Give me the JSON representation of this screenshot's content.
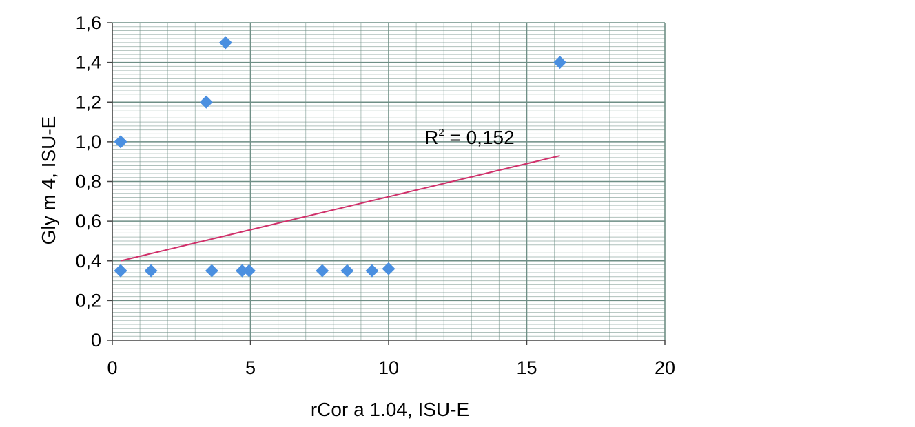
{
  "chart_data": {
    "type": "scatter",
    "title": "",
    "xlabel": "rCor a 1.04, ISU-E",
    "ylabel": "Gly m 4, ISU-E",
    "xlim": [
      0,
      20
    ],
    "ylim": [
      0,
      1.6
    ],
    "x_ticks": [
      0,
      5,
      10,
      15,
      20
    ],
    "y_ticks": [
      0,
      0.2,
      0.4,
      0.6,
      0.8,
      1.0,
      1.2,
      1.4,
      1.6
    ],
    "x_tick_labels": [
      "0",
      "5",
      "10",
      "15",
      "20"
    ],
    "y_tick_labels": [
      "0",
      "0,2",
      "0,4",
      "0,6",
      "0,8",
      "1,0",
      "1,2",
      "1,4",
      "1,6"
    ],
    "grid": true,
    "marker_color": "#4a8fe0",
    "trendline_color": "#d0306a",
    "grid_color": "#6f8f86",
    "points": [
      {
        "x": 0.3,
        "y": 1.0
      },
      {
        "x": 0.3,
        "y": 0.35
      },
      {
        "x": 0.3,
        "y": 0.35
      },
      {
        "x": 1.4,
        "y": 0.35
      },
      {
        "x": 3.4,
        "y": 1.2
      },
      {
        "x": 3.6,
        "y": 0.35
      },
      {
        "x": 4.1,
        "y": 1.5
      },
      {
        "x": 4.7,
        "y": 0.35
      },
      {
        "x": 4.95,
        "y": 0.35
      },
      {
        "x": 7.6,
        "y": 0.35
      },
      {
        "x": 8.5,
        "y": 0.35
      },
      {
        "x": 9.4,
        "y": 0.35
      },
      {
        "x": 10.0,
        "y": 0.36
      },
      {
        "x": 16.2,
        "y": 1.4
      }
    ],
    "trendline": {
      "x": [
        0.3,
        16.2
      ],
      "y": [
        0.4,
        0.93
      ]
    },
    "annotation": {
      "prefix": "R",
      "sup": "2",
      "suffix": " = 0,152",
      "x": 11.3,
      "y": 0.99
    }
  }
}
